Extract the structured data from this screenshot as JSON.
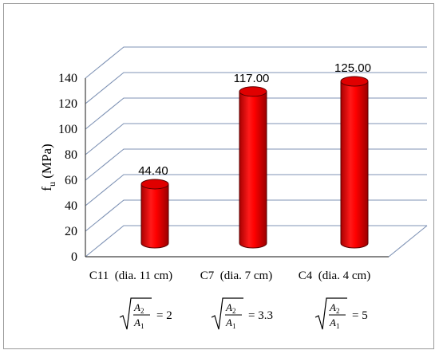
{
  "chart_data": {
    "type": "bar",
    "style": "3d-cylinder",
    "title": "",
    "xlabel": "",
    "ylabel_main": "f",
    "ylabel_sub": "u",
    "ylabel_unit": "(MPa)",
    "ylim": [
      0,
      140
    ],
    "yticks": [
      "0",
      "20",
      "40",
      "60",
      "80",
      "100",
      "120",
      "140"
    ],
    "grid": true,
    "categories": [
      "C11  (dia. 11 cm)",
      "C7  (dia. 7 cm)",
      "C4  (dia. 4 cm)"
    ],
    "values": [
      44.4,
      117.0,
      125.0
    ],
    "data_labels": [
      "44.40",
      "117.00",
      "125.00"
    ],
    "bar_color": "#ff0000",
    "bar_dark_color": "#b00000",
    "ratio_annotations": [
      {
        "numerator": "A",
        "numerator_sub": "2",
        "denominator": "A",
        "denominator_sub": "1",
        "value": "= 2"
      },
      {
        "numerator": "A",
        "numerator_sub": "2",
        "denominator": "A",
        "denominator_sub": "1",
        "value": "= 3.3"
      },
      {
        "numerator": "A",
        "numerator_sub": "2",
        "denominator": "A",
        "denominator_sub": "1",
        "value": "= 5"
      }
    ]
  }
}
